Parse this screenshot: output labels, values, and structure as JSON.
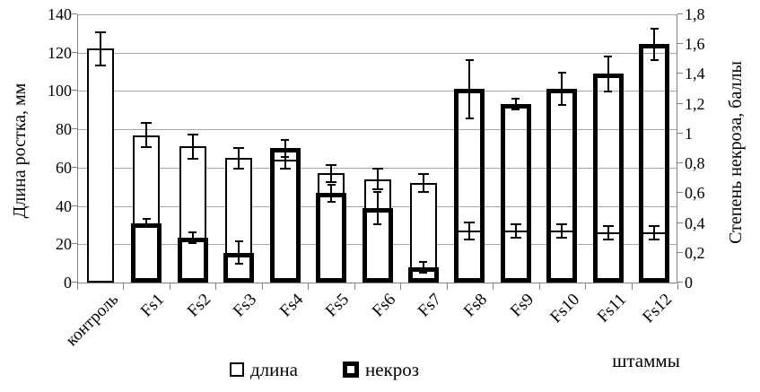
{
  "chart_data": {
    "type": "bar",
    "title": "",
    "xlabel": "штаммы",
    "categories": [
      "контроль",
      "Fs1",
      "Fs2",
      "Fs3",
      "Fs4",
      "Fs5",
      "Fs6",
      "Fs7",
      "Fs8",
      "Fs9",
      "Fs10",
      "Fs11",
      "Fs12"
    ],
    "series": [
      {
        "name": "длина",
        "axis": "left",
        "style": "thin",
        "values": [
          122,
          77,
          71,
          65,
          64,
          57,
          54,
          52,
          27,
          27,
          27,
          26,
          26
        ],
        "errors": [
          8,
          6,
          6,
          5,
          4,
          4,
          5,
          4,
          4,
          3,
          3,
          3,
          3
        ]
      },
      {
        "name": "некроз",
        "axis": "right",
        "style": "thick",
        "values": [
          null,
          0.4,
          0.3,
          0.2,
          0.9,
          0.6,
          0.5,
          0.1,
          1.3,
          1.2,
          1.3,
          1.4,
          1.6
        ],
        "errors": [
          null,
          0.02,
          0.03,
          0.07,
          0.05,
          0.05,
          0.1,
          0.03,
          0.19,
          0.03,
          0.1,
          0.11,
          0.1
        ]
      }
    ],
    "left_axis": {
      "title": "Длина ростка, мм",
      "min": 0,
      "max": 140,
      "step": 20,
      "tick_labels": [
        "0",
        "20",
        "40",
        "60",
        "80",
        "100",
        "120",
        "140"
      ]
    },
    "right_axis": {
      "title": "Степень некроза, баллы",
      "min": 0,
      "max": 1.8,
      "step": 0.2,
      "tick_labels": [
        "0",
        "0,2",
        "0,4",
        "0,6",
        "0,8",
        "1",
        "1,2",
        "1,4",
        "1,6",
        "1,8"
      ]
    },
    "legend": [
      {
        "label": "длина",
        "style": "thin"
      },
      {
        "label": "некроз",
        "style": "thick"
      }
    ],
    "grid": true,
    "legend_position": "bottom"
  }
}
